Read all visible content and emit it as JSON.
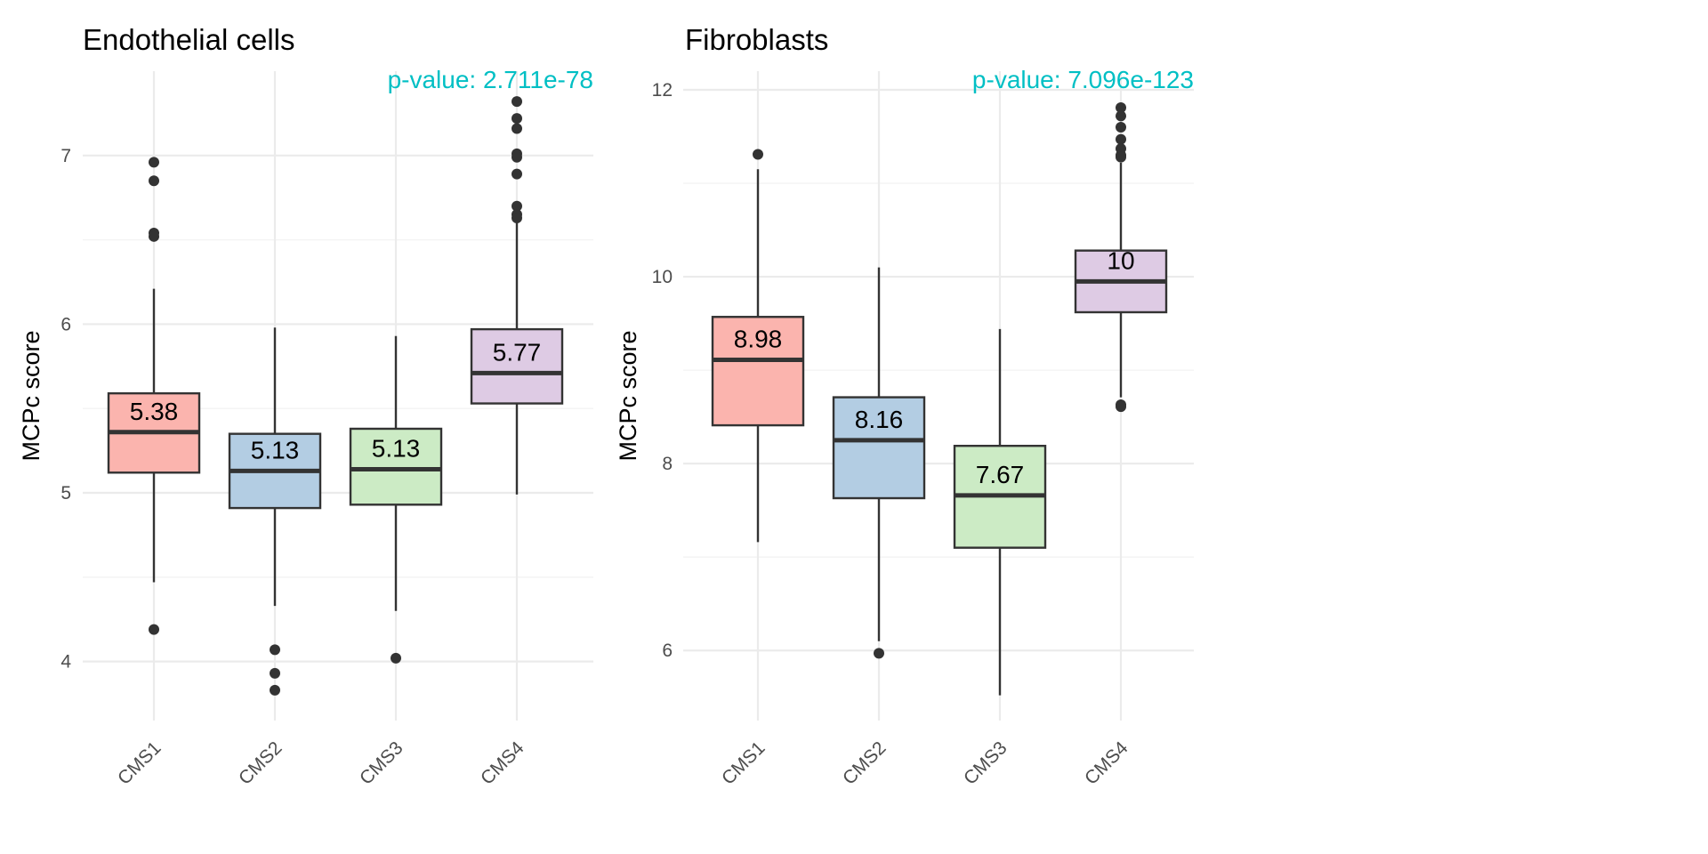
{
  "chart_data": [
    {
      "type": "box",
      "title": "Endothelial cells",
      "subtitle": "",
      "xlabel": "",
      "ylabel": "MCPc score",
      "annotation": "p-value: 2.711e-78",
      "annotation_color": "#00bfc4",
      "ylim": [
        3.65,
        7.5
      ],
      "y_ticks": [
        4,
        5,
        6,
        7
      ],
      "y_minor_ticks": [
        4.5,
        5.5,
        6.5
      ],
      "grid": true,
      "legend": "none",
      "categories": [
        "CMS1",
        "CMS2",
        "CMS3",
        "CMS4"
      ],
      "boxes": [
        {
          "category": "CMS1",
          "whisker_low": 4.47,
          "q1": 5.12,
          "median": 5.36,
          "q3": 5.59,
          "whisker_high": 6.21,
          "outliers": [
            6.96,
            6.85,
            6.54,
            6.52,
            4.19
          ],
          "label": "5.38",
          "fill": "#fbb4ae"
        },
        {
          "category": "CMS2",
          "whisker_low": 4.33,
          "q1": 4.91,
          "median": 5.13,
          "q3": 5.35,
          "whisker_high": 5.98,
          "outliers": [
            4.07,
            3.93,
            3.83
          ],
          "label": "5.13",
          "fill": "#b3cde3"
        },
        {
          "category": "CMS3",
          "whisker_low": 4.3,
          "q1": 4.93,
          "median": 5.14,
          "q3": 5.38,
          "whisker_high": 5.93,
          "outliers": [
            4.02
          ],
          "label": "5.13",
          "fill": "#ccebc5"
        },
        {
          "category": "CMS4",
          "whisker_low": 4.99,
          "q1": 5.53,
          "median": 5.71,
          "q3": 5.97,
          "whisker_high": 6.61,
          "outliers": [
            7.32,
            7.22,
            7.16,
            7.01,
            6.99,
            6.89,
            6.7,
            6.65,
            6.63
          ],
          "label": "5.77",
          "fill": "#decbe4"
        }
      ]
    },
    {
      "type": "box",
      "title": "Fibroblasts",
      "subtitle": "",
      "xlabel": "",
      "ylabel": "MCPc score",
      "annotation": "p-value: 7.096e-123",
      "annotation_color": "#00bfc4",
      "ylim": [
        5.25,
        12.2
      ],
      "y_ticks": [
        6,
        8,
        10,
        12
      ],
      "y_minor_ticks": [
        7,
        9,
        11
      ],
      "grid": true,
      "legend": "none",
      "categories": [
        "CMS1",
        "CMS2",
        "CMS3",
        "CMS4"
      ],
      "boxes": [
        {
          "category": "CMS1",
          "whisker_low": 7.16,
          "q1": 8.41,
          "median": 9.11,
          "q3": 9.57,
          "whisker_high": 11.15,
          "outliers": [
            11.31
          ],
          "label": "8.98",
          "fill": "#fbb4ae"
        },
        {
          "category": "CMS2",
          "whisker_low": 6.1,
          "q1": 7.63,
          "median": 8.25,
          "q3": 8.71,
          "whisker_high": 10.1,
          "outliers": [
            5.97
          ],
          "label": "8.16",
          "fill": "#b3cde3"
        },
        {
          "category": "CMS3",
          "whisker_low": 5.52,
          "q1": 7.1,
          "median": 7.66,
          "q3": 8.19,
          "whisker_high": 9.44,
          "outliers": [],
          "label": "7.67",
          "fill": "#ccebc5"
        },
        {
          "category": "CMS4",
          "whisker_low": 8.71,
          "q1": 9.62,
          "median": 9.95,
          "q3": 10.28,
          "whisker_high": 11.22,
          "outliers": [
            11.81,
            11.72,
            11.6,
            11.47,
            11.37,
            11.3,
            11.28,
            8.63,
            8.61
          ],
          "label": "10",
          "fill": "#decbe4"
        }
      ]
    }
  ]
}
